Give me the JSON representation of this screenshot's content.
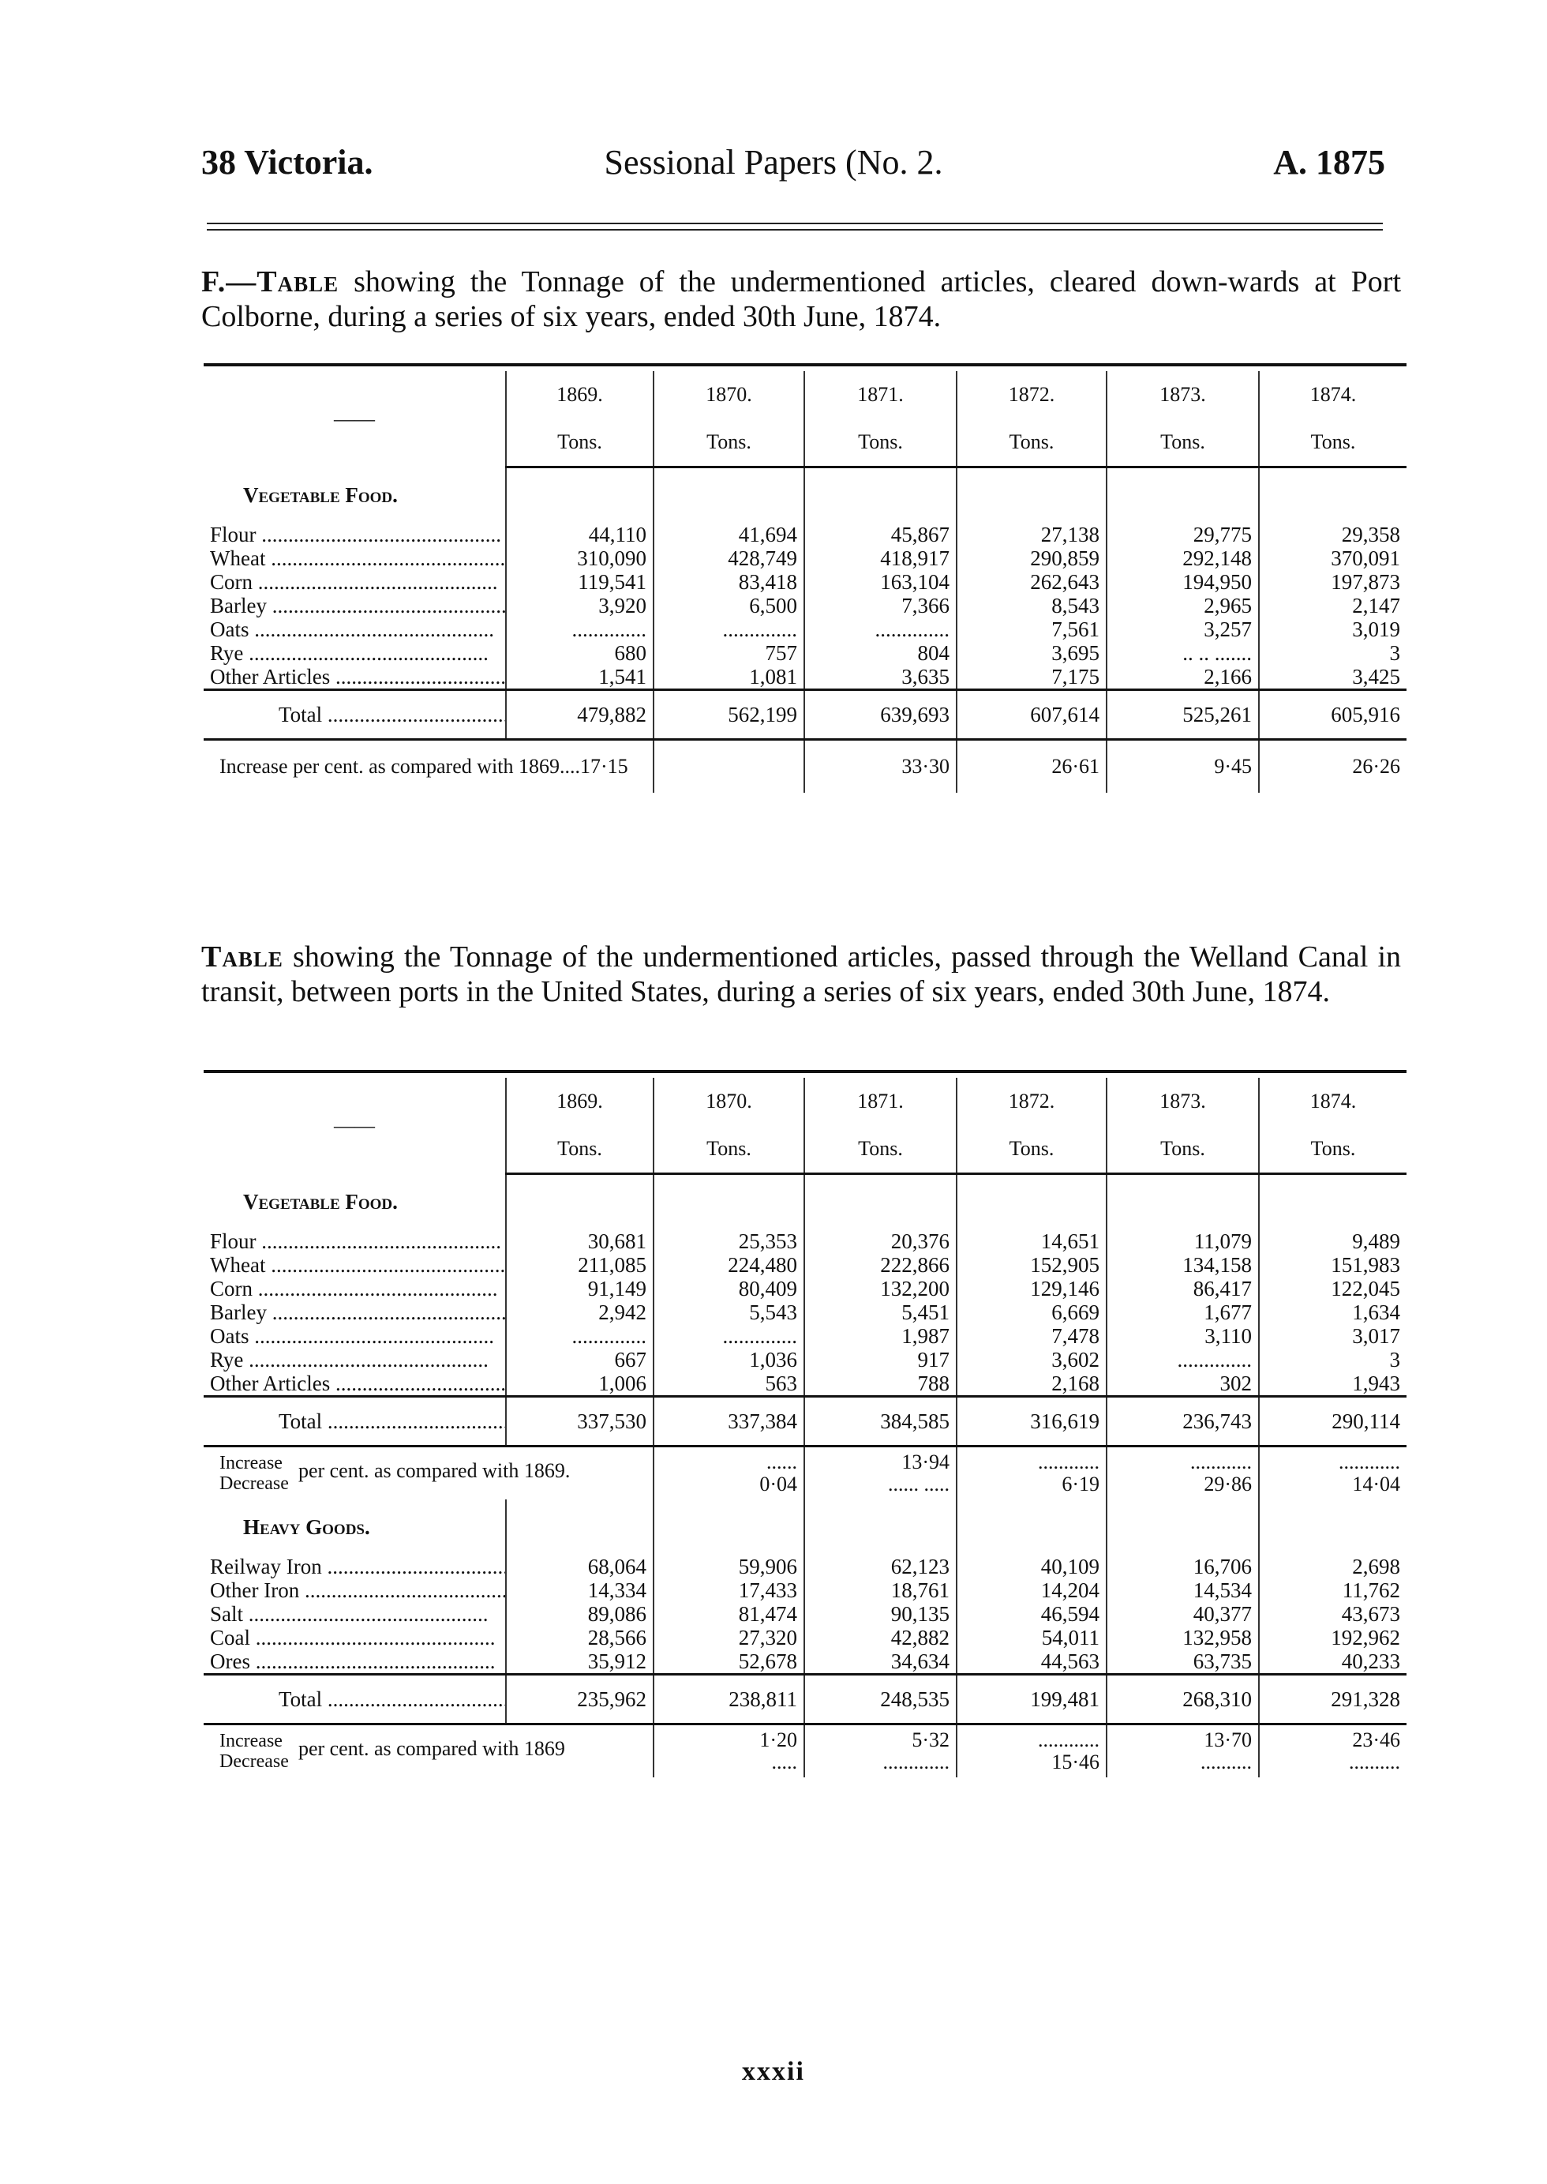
{
  "header": {
    "left": "38 Victoria.",
    "center": "Sessional Papers (No. 2.",
    "right": "A. 1875"
  },
  "tables": [
    {
      "title_lead": "F.—Table",
      "title_rest": " showing the Tonnage of the undermentioned articles, cleared down-wards at Port Colborne, during a series of six years, ended 30th June, 1874.",
      "corner": "——",
      "years": [
        "1869.",
        "1870.",
        "1871.",
        "1872.",
        "1873.",
        "1874."
      ],
      "unit": "Tons.",
      "sections": [
        {
          "heading": "Vegetable Food.",
          "rows": [
            {
              "label": "Flour",
              "values": [
                "44,110",
                "41,694",
                "45,867",
                "27,138",
                "29,775",
                "29,358"
              ]
            },
            {
              "label": "Wheat",
              "values": [
                "310,090",
                "428,749",
                "418,917",
                "290,859",
                "292,148",
                "370,091"
              ]
            },
            {
              "label": "Corn",
              "values": [
                "119,541",
                "83,418",
                "163,104",
                "262,643",
                "194,950",
                "197,873"
              ]
            },
            {
              "label": "Barley",
              "values": [
                "3,920",
                "6,500",
                "7,366",
                "8,543",
                "2,965",
                "2,147"
              ]
            },
            {
              "label": "Oats",
              "values": [
                "..............",
                "..............",
                "..............",
                "7,561",
                "3,257",
                "3,019"
              ]
            },
            {
              "label": "Rye",
              "values": [
                "680",
                "757",
                "804",
                "3,695",
                ".. .. .......",
                "3"
              ]
            },
            {
              "label": "Other Articles",
              "values": [
                "1,541",
                "1,081",
                "3,635",
                "7,175",
                "2,166",
                "3,425"
              ]
            }
          ],
          "total_label": "Total",
          "totals": [
            "479,882",
            "562,199",
            "639,693",
            "607,614",
            "525,261",
            "605,916"
          ],
          "pct_label": "Increase per cent. as compared with 1869....17·15",
          "pct": [
            {
              "inc": "",
              "dec": ""
            },
            {
              "inc": "33·30",
              "dec": ""
            },
            {
              "inc": "26·61",
              "dec": ""
            },
            {
              "inc": "9·45",
              "dec": ""
            },
            {
              "inc": "26·26",
              "dec": ""
            }
          ]
        }
      ]
    },
    {
      "title_lead": "Table",
      "title_rest": " showing the Tonnage of the undermentioned articles, passed through the Welland Canal in transit, between ports in the United States, during a series of six years, ended 30th June, 1874.",
      "corner": "——",
      "years": [
        "1869.",
        "1870.",
        "1871.",
        "1872.",
        "1873.",
        "1874."
      ],
      "unit": "Tons.",
      "sections": [
        {
          "heading": "Vegetable Food.",
          "rows": [
            {
              "label": "Flour",
              "values": [
                "30,681",
                "25,353",
                "20,376",
                "14,651",
                "11,079",
                "9,489"
              ]
            },
            {
              "label": "Wheat",
              "values": [
                "211,085",
                "224,480",
                "222,866",
                "152,905",
                "134,158",
                "151,983"
              ]
            },
            {
              "label": "Corn",
              "values": [
                "91,149",
                "80,409",
                "132,200",
                "129,146",
                "86,417",
                "122,045"
              ]
            },
            {
              "label": "Barley",
              "values": [
                "2,942",
                "5,543",
                "5,451",
                "6,669",
                "1,677",
                "1,634"
              ]
            },
            {
              "label": "Oats",
              "values": [
                "..............",
                "..............",
                "1,987",
                "7,478",
                "3,110",
                "3,017"
              ]
            },
            {
              "label": "Rye",
              "values": [
                "667",
                "1,036",
                "917",
                "3,602",
                "..............",
                "3"
              ]
            },
            {
              "label": "Other Articles",
              "values": [
                "1,006",
                "563",
                "788",
                "2,168",
                "302",
                "1,943"
              ]
            }
          ],
          "total_label": "Total",
          "totals": [
            "337,530",
            "337,384",
            "384,585",
            "316,619",
            "236,743",
            "290,114"
          ],
          "pct_inc_label": "Increase",
          "pct_dec_label": "Decrease",
          "pct_label": "per cent. as compared with 1869.",
          "pct": [
            {
              "inc": "......",
              "dec": "0·04"
            },
            {
              "inc": "13·94",
              "dec": "...... ....."
            },
            {
              "inc": "............",
              "dec": "6·19"
            },
            {
              "inc": "............",
              "dec": "29·86"
            },
            {
              "inc": "............",
              "dec": "14·04"
            }
          ]
        },
        {
          "heading": "Heavy Goods.",
          "rows": [
            {
              "label": "Reilway Iron",
              "values": [
                "68,064",
                "59,906",
                "62,123",
                "40,109",
                "16,706",
                "2,698"
              ]
            },
            {
              "label": "Other Iron",
              "values": [
                "14,334",
                "17,433",
                "18,761",
                "14,204",
                "14,534",
                "11,762"
              ]
            },
            {
              "label": "Salt",
              "values": [
                "89,086",
                "81,474",
                "90,135",
                "46,594",
                "40,377",
                "43,673"
              ]
            },
            {
              "label": "Coal",
              "values": [
                "28,566",
                "27,320",
                "42,882",
                "54,011",
                "132,958",
                "192,962"
              ]
            },
            {
              "label": "Ores",
              "values": [
                "35,912",
                "52,678",
                "34,634",
                "44,563",
                "63,735",
                "40,233"
              ]
            }
          ],
          "total_label": "Total",
          "totals": [
            "235,962",
            "238,811",
            "248,535",
            "199,481",
            "268,310",
            "291,328"
          ],
          "pct_inc_label": "Increase",
          "pct_dec_label": "Decrease",
          "pct_label": "per cent. as compared with 1869",
          "pct": [
            {
              "inc": "1·20",
              "dec": "....."
            },
            {
              "inc": "5·32",
              "dec": "............."
            },
            {
              "inc": "............",
              "dec": "15·46"
            },
            {
              "inc": "13·70",
              "dec": ".........."
            },
            {
              "inc": "23·46",
              "dec": ".........."
            }
          ]
        }
      ]
    }
  ],
  "footer": {
    "page": "xxxii"
  }
}
